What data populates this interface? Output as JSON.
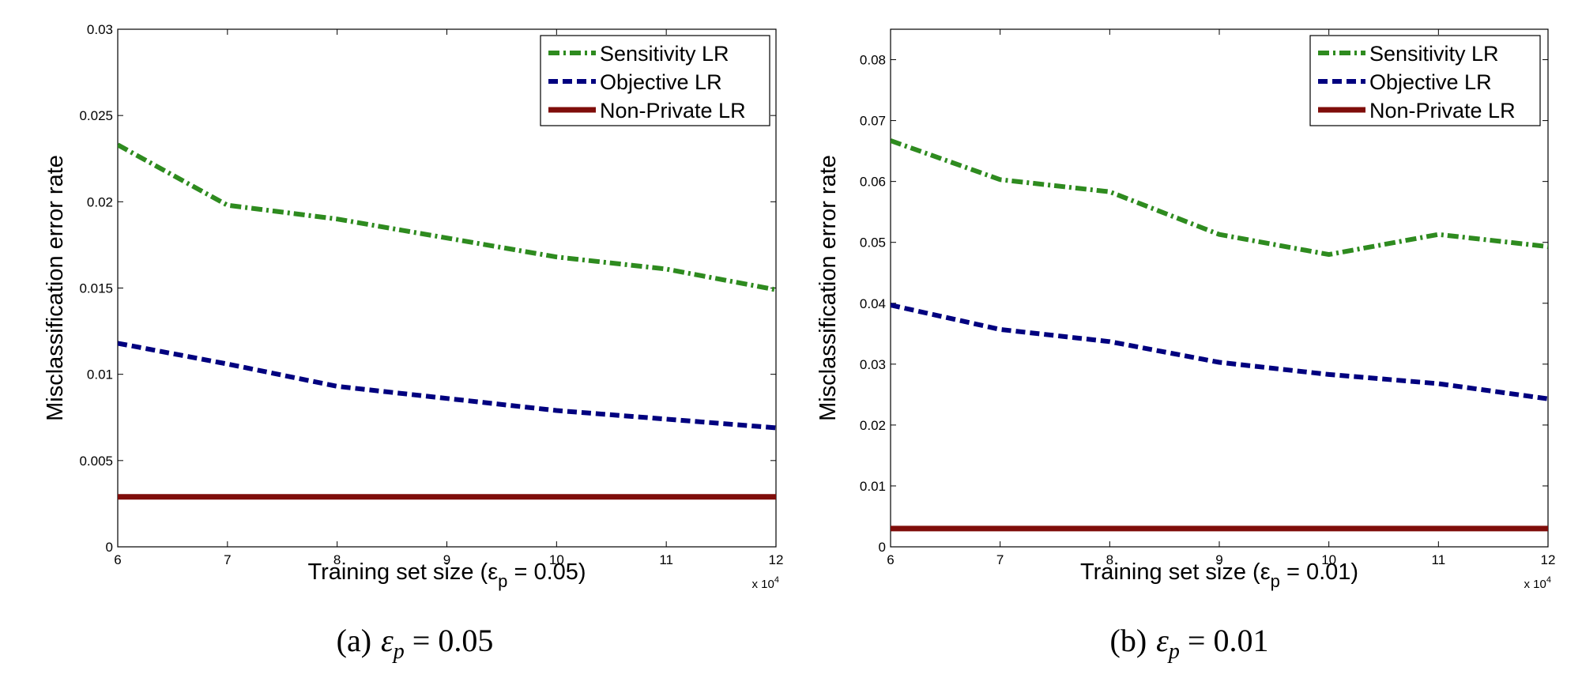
{
  "colors": {
    "Sensitivity LR": "#2e8b1f",
    "Objective LR": "#00007f",
    "Non-Private LR": "#7f0d0a"
  },
  "chart_data": [
    {
      "type": "line",
      "panel": "a",
      "caption": {
        "prefix": "(a)",
        "symbol": "ε",
        "sub": "p",
        "rest": " = 0.05"
      },
      "xlabel": {
        "text": "Training set size (",
        "symbol": "ε",
        "sub": "p",
        "tail": " = 0.05)"
      },
      "ylabel": "Misclassification error rate",
      "x_multiplier": {
        "base": "x 10",
        "exp": "4"
      },
      "xlim": [
        6,
        12
      ],
      "ylim": [
        0,
        0.03
      ],
      "xticks": [
        "6",
        "7",
        "8",
        "9",
        "10",
        "11",
        "12"
      ],
      "yticks": [
        "0",
        "0.005",
        "0.01",
        "0.015",
        "0.02",
        "0.025",
        "0.03"
      ],
      "legend_position": "top-right",
      "x": [
        6,
        7,
        8,
        9,
        10,
        11,
        12
      ],
      "series": [
        {
          "name": "Sensitivity LR",
          "style": "dashdot",
          "values": [
            0.0233,
            0.0198,
            0.019,
            0.0179,
            0.0168,
            0.0161,
            0.0149
          ]
        },
        {
          "name": "Objective LR",
          "style": "dashed",
          "values": [
            0.0118,
            0.0106,
            0.0093,
            0.0086,
            0.0079,
            0.0074,
            0.0069
          ]
        },
        {
          "name": "Non-Private LR",
          "style": "solid",
          "values": [
            0.0029,
            0.0029,
            0.0029,
            0.0029,
            0.0029,
            0.0029,
            0.0029
          ]
        }
      ]
    },
    {
      "type": "line",
      "panel": "b",
      "caption": {
        "prefix": "(b)",
        "symbol": "ε",
        "sub": "p",
        "rest": " = 0.01"
      },
      "xlabel": {
        "text": "Training set size (",
        "symbol": "ε",
        "sub": "p",
        "tail": " = 0.01)"
      },
      "ylabel": "Misclassification error rate",
      "x_multiplier": {
        "base": "x 10",
        "exp": "4"
      },
      "xlim": [
        6,
        12
      ],
      "ylim": [
        0,
        0.085
      ],
      "xticks": [
        "6",
        "7",
        "8",
        "9",
        "10",
        "11",
        "12"
      ],
      "yticks": [
        "0",
        "0.01",
        "0.02",
        "0.03",
        "0.04",
        "0.05",
        "0.06",
        "0.07",
        "0.08"
      ],
      "legend_position": "top-right",
      "x": [
        6,
        7,
        8,
        9,
        10,
        11,
        12
      ],
      "series": [
        {
          "name": "Sensitivity LR",
          "style": "dashdot",
          "values": [
            0.0667,
            0.0603,
            0.0583,
            0.0513,
            0.048,
            0.0513,
            0.0493
          ]
        },
        {
          "name": "Objective LR",
          "style": "dashed",
          "values": [
            0.0397,
            0.0357,
            0.0337,
            0.0303,
            0.0283,
            0.0268,
            0.0243
          ]
        },
        {
          "name": "Non-Private LR",
          "style": "solid",
          "values": [
            0.003,
            0.003,
            0.003,
            0.003,
            0.003,
            0.003,
            0.003
          ]
        }
      ]
    }
  ]
}
